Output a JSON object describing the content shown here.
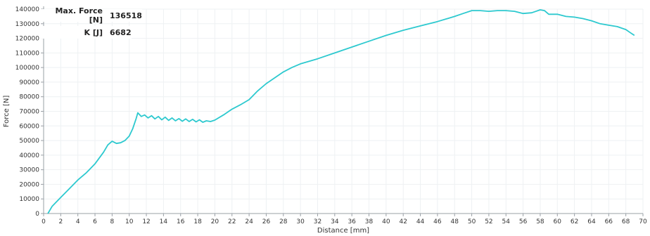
{
  "readouts": {
    "max_force_label": "Max. Force [N]",
    "max_force_value": "136518",
    "k_label": "K [J]",
    "k_value": "6682"
  },
  "colors": {
    "line": "#2dc9cf",
    "axis": "#9aa0a6",
    "grid": "#eef1f3",
    "text": "#333333"
  },
  "chart_data": {
    "type": "line",
    "title": "",
    "xlabel": "Distance [mm]",
    "ylabel": "Force [N]",
    "xlim": [
      0,
      70
    ],
    "ylim": [
      0,
      140000
    ],
    "x_ticks": [
      0,
      2,
      4,
      6,
      8,
      10,
      12,
      14,
      16,
      18,
      20,
      22,
      24,
      26,
      28,
      30,
      32,
      34,
      36,
      38,
      40,
      42,
      44,
      46,
      48,
      50,
      52,
      54,
      56,
      58,
      60,
      62,
      64,
      66,
      68,
      70
    ],
    "y_ticks": [
      0,
      10000,
      20000,
      30000,
      40000,
      50000,
      60000,
      70000,
      80000,
      90000,
      100000,
      110000,
      120000,
      130000,
      140000
    ],
    "grid": true,
    "series": [
      {
        "x": [
          0.5,
          1,
          2,
          3,
          4,
          5,
          6,
          7,
          7.5,
          8,
          8.5,
          9,
          9.5,
          10,
          10.4,
          10.8,
          11.0,
          11.4,
          11.8,
          12.2,
          12.6,
          13.0,
          13.4,
          13.8,
          14.2,
          14.6,
          15.0,
          15.4,
          15.8,
          16.2,
          16.6,
          17.0,
          17.4,
          17.8,
          18.2,
          18.6,
          19.0,
          19.5,
          20,
          21,
          22,
          23,
          24,
          25,
          26,
          27,
          28,
          29,
          30,
          32,
          34,
          36,
          38,
          40,
          42,
          44,
          46,
          48,
          49,
          50,
          51,
          52,
          53,
          54,
          55,
          56,
          57,
          58,
          58.5,
          59,
          60,
          61,
          62,
          63,
          64,
          65,
          66,
          67,
          68,
          68.5,
          69
        ],
        "y": [
          0,
          5000,
          11000,
          17000,
          23000,
          28000,
          34000,
          42000,
          47000,
          49500,
          48000,
          48500,
          50000,
          53000,
          58000,
          65000,
          69000,
          66500,
          67500,
          65500,
          67000,
          64800,
          66500,
          64200,
          66000,
          63800,
          65500,
          63500,
          65000,
          63200,
          64800,
          63000,
          64500,
          62800,
          64200,
          62500,
          63500,
          63000,
          64000,
          67500,
          71500,
          74500,
          78000,
          84000,
          89000,
          93000,
          97000,
          100000,
          102500,
          106000,
          110000,
          114000,
          118000,
          122000,
          125500,
          128500,
          131500,
          135000,
          137000,
          139000,
          139000,
          138500,
          139000,
          139000,
          138500,
          137000,
          137500,
          139500,
          139000,
          136500,
          136500,
          135000,
          134500,
          133500,
          132000,
          130000,
          129000,
          128000,
          126000,
          124000,
          122000
        ]
      }
    ]
  }
}
